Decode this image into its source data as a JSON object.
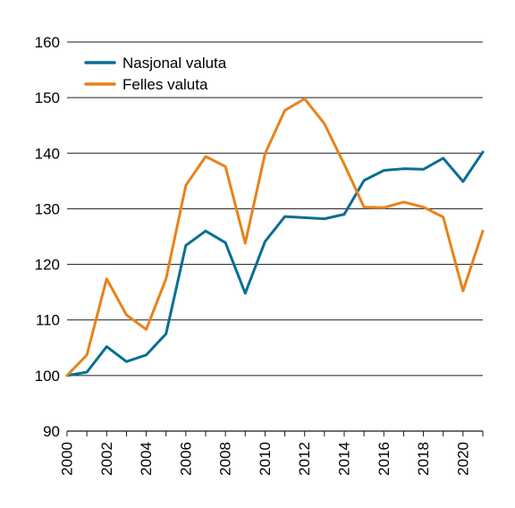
{
  "chart_data": {
    "type": "line",
    "title": "",
    "xlabel": "",
    "ylabel": "",
    "xlim": [
      2000,
      2021
    ],
    "ylim": [
      90,
      160
    ],
    "yticks": [
      90,
      100,
      110,
      120,
      130,
      140,
      150,
      160
    ],
    "xticks": [
      2000,
      2002,
      2004,
      2006,
      2008,
      2010,
      2012,
      2014,
      2016,
      2018,
      2020
    ],
    "grid": "horizontal",
    "legend": "top-left",
    "x": [
      2000,
      2001,
      2002,
      2003,
      2004,
      2005,
      2006,
      2007,
      2008,
      2009,
      2010,
      2011,
      2012,
      2013,
      2014,
      2015,
      2016,
      2017,
      2018,
      2019,
      2020,
      2021
    ],
    "series": [
      {
        "name": "Nasjonal valuta",
        "color": "#0a6e94",
        "values": [
          100,
          100.6,
          105.2,
          102.5,
          103.7,
          107.5,
          123.4,
          126.0,
          123.9,
          114.8,
          124.1,
          128.6,
          128.4,
          128.2,
          129.0,
          135.1,
          136.9,
          137.2,
          137.1,
          139.1,
          134.9,
          140.2
        ]
      },
      {
        "name": "Felles valuta",
        "color": "#e8821a",
        "values": [
          100,
          103.7,
          117.4,
          110.9,
          108.3,
          117.4,
          134.2,
          139.4,
          137.6,
          123.8,
          139.9,
          147.7,
          149.8,
          145.3,
          138.0,
          130.3,
          130.2,
          131.2,
          130.3,
          128.5,
          115.2,
          126.0
        ]
      }
    ]
  }
}
